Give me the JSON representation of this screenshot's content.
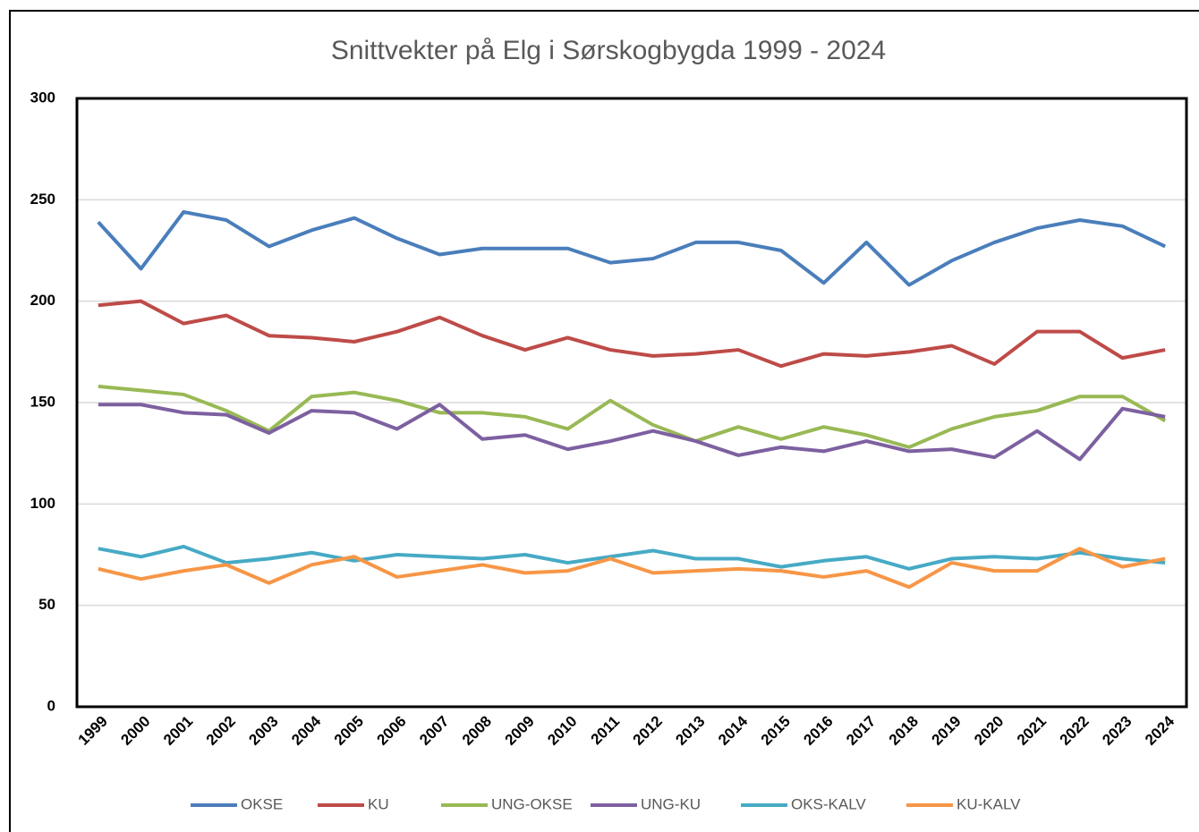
{
  "chart_data": {
    "type": "line",
    "title": "Snittvekter på Elg i Sørskogbygda 1999 - 2024",
    "categories": [
      "1999",
      "2000",
      "2001",
      "2002",
      "2003",
      "2004",
      "2005",
      "2006",
      "2007",
      "2008",
      "2009",
      "2010",
      "2011",
      "2012",
      "2013",
      "2014",
      "2015",
      "2016",
      "2017",
      "2018",
      "2019",
      "2020",
      "2021",
      "2022",
      "2023",
      "2024"
    ],
    "series": [
      {
        "name": "OKSE",
        "color": "#4a7ebb",
        "values": [
          239,
          216,
          244,
          240,
          227,
          235,
          241,
          231,
          223,
          226,
          226,
          226,
          219,
          221,
          229,
          229,
          225,
          209,
          229,
          208,
          220,
          229,
          236,
          240,
          237,
          227
        ]
      },
      {
        "name": "KU",
        "color": "#be4b48",
        "values": [
          198,
          200,
          189,
          193,
          183,
          182,
          180,
          185,
          192,
          183,
          176,
          182,
          176,
          173,
          174,
          176,
          168,
          174,
          173,
          175,
          178,
          169,
          185,
          185,
          172,
          176
        ]
      },
      {
        "name": "UNG-OKSE",
        "color": "#98b954",
        "values": [
          158,
          156,
          154,
          146,
          136,
          153,
          155,
          151,
          145,
          145,
          143,
          137,
          151,
          139,
          131,
          138,
          132,
          138,
          134,
          128,
          137,
          143,
          146,
          153,
          153,
          141
        ]
      },
      {
        "name": "UNG-KU",
        "color": "#7d60a0",
        "values": [
          149,
          149,
          145,
          144,
          135,
          146,
          145,
          137,
          149,
          132,
          134,
          127,
          131,
          136,
          131,
          124,
          128,
          126,
          131,
          126,
          127,
          123,
          136,
          122,
          147,
          143
        ]
      },
      {
        "name": "OKS-KALV",
        "color": "#46aac5",
        "values": [
          78,
          74,
          79,
          71,
          73,
          76,
          72,
          75,
          74,
          73,
          75,
          71,
          74,
          77,
          73,
          73,
          69,
          72,
          74,
          68,
          73,
          74,
          73,
          76,
          73,
          71
        ]
      },
      {
        "name": "KU-KALV",
        "color": "#f79646",
        "values": [
          68,
          63,
          67,
          70,
          61,
          70,
          74,
          64,
          67,
          70,
          66,
          67,
          73,
          66,
          67,
          68,
          67,
          64,
          67,
          59,
          71,
          67,
          67,
          78,
          69,
          73
        ]
      }
    ],
    "ylim": [
      0,
      300
    ],
    "yticks": [
      0,
      50,
      100,
      150,
      200,
      250,
      300
    ],
    "grid": true,
    "legend": "bottom"
  }
}
